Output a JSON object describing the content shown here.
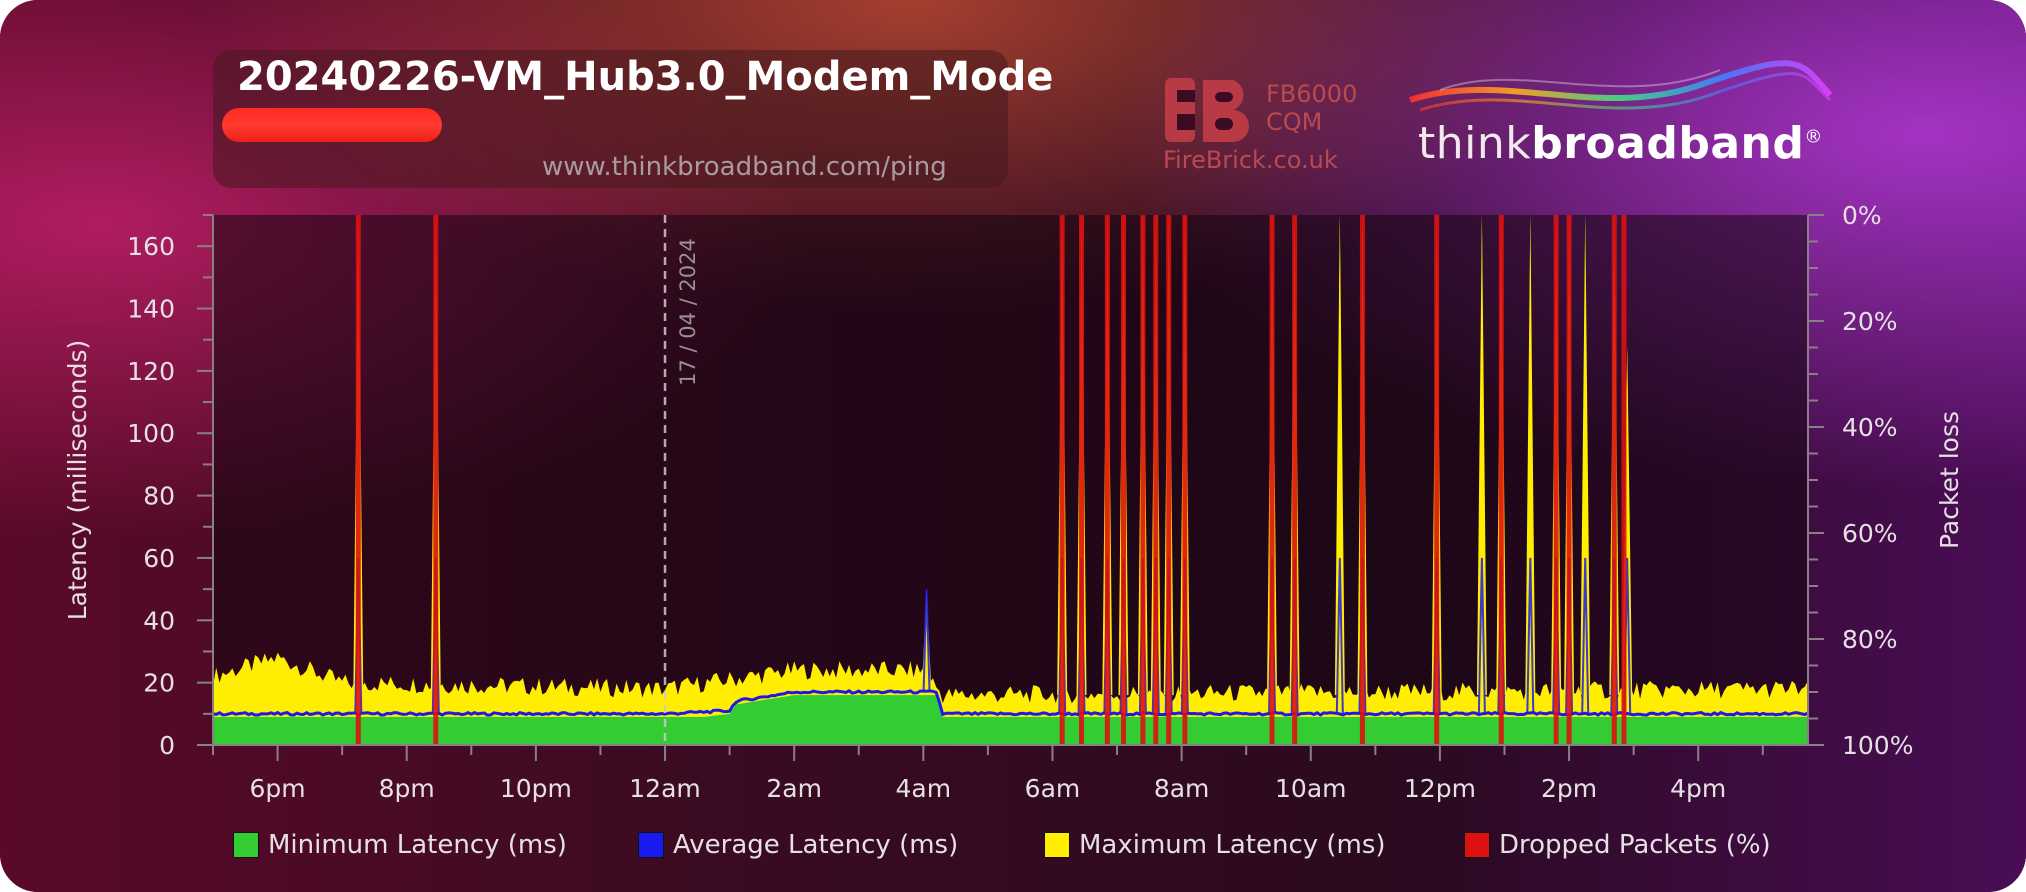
{
  "header": {
    "title": "20240226-VM_Hub3.0_Modem_Mode",
    "url": "www.thinkbroadband.com/ping"
  },
  "sponsor": {
    "line1": "FB6000",
    "line2": "CQM",
    "site": "FireBrick.co.uk"
  },
  "brand": {
    "light": "think",
    "bold": "broadband",
    "mark": "®"
  },
  "colors": {
    "minimum": "#33cc33",
    "average": "#1a1aee",
    "maximum": "#ffee00",
    "dropped": "#dd1111"
  },
  "chart_data": {
    "type": "area",
    "ylabel": "Latency (milliseconds)",
    "y2label": "Packet loss",
    "ylim": [
      0,
      170
    ],
    "yticks": [
      0,
      20,
      40,
      60,
      80,
      100,
      120,
      140,
      160
    ],
    "y2ticks": [
      "0%",
      "20%",
      "40%",
      "60%",
      "80%",
      "100%"
    ],
    "y2range": [
      100,
      0
    ],
    "x_tick_labels": [
      "6pm",
      "8pm",
      "10pm",
      "12am",
      "2am",
      "4am",
      "6am",
      "8am",
      "10am",
      "12pm",
      "2pm",
      "4pm"
    ],
    "x_tick_hours": [
      18,
      20,
      22,
      24,
      26,
      28,
      30,
      32,
      34,
      36,
      38,
      40
    ],
    "xlim_hours": [
      17.0,
      41.7
    ],
    "date_marker": {
      "hour": 24,
      "label": "17 / 04 / 2024"
    },
    "legend": [
      {
        "key": "minimum",
        "label": "Minimum Latency (ms)"
      },
      {
        "key": "average",
        "label": "Average Latency (ms)"
      },
      {
        "key": "maximum",
        "label": "Maximum Latency (ms)"
      },
      {
        "key": "dropped",
        "label": "Dropped Packets (%)"
      }
    ],
    "baseline": {
      "minimum": [
        [
          17.0,
          9
        ],
        [
          24.0,
          9
        ],
        [
          24.6,
          9
        ],
        [
          25.0,
          10
        ],
        [
          25.1,
          13
        ],
        [
          26.0,
          16
        ],
        [
          28.2,
          16
        ],
        [
          28.3,
          9
        ],
        [
          41.7,
          9
        ]
      ],
      "average": [
        [
          17.0,
          10
        ],
        [
          19.0,
          10
        ],
        [
          24.0,
          10
        ],
        [
          25.0,
          11
        ],
        [
          25.1,
          14
        ],
        [
          26.0,
          17
        ],
        [
          28.2,
          17
        ],
        [
          28.3,
          10
        ],
        [
          41.7,
          10
        ]
      ],
      "maximum": [
        [
          17.0,
          22
        ],
        [
          18.0,
          28
        ],
        [
          19.0,
          20
        ],
        [
          24.0,
          18
        ],
        [
          25.0,
          21
        ],
        [
          26.0,
          24
        ],
        [
          28.0,
          24
        ],
        [
          28.3,
          16
        ],
        [
          41.7,
          18
        ]
      ]
    },
    "latency_spikes": [
      {
        "hour": 19.25,
        "max": 170,
        "avg": 10
      },
      {
        "hour": 20.45,
        "max": 170,
        "avg": 10
      },
      {
        "hour": 28.05,
        "max": 50,
        "avg": 17
      },
      {
        "hour": 30.15,
        "max": 170,
        "avg": 10
      },
      {
        "hour": 30.45,
        "max": 170,
        "avg": 10
      },
      {
        "hour": 30.85,
        "max": 170,
        "avg": 10
      },
      {
        "hour": 31.1,
        "max": 170,
        "avg": 10
      },
      {
        "hour": 31.4,
        "max": 170,
        "avg": 10
      },
      {
        "hour": 31.6,
        "max": 170,
        "avg": 10
      },
      {
        "hour": 31.8,
        "max": 170,
        "avg": 10
      },
      {
        "hour": 32.05,
        "max": 170,
        "avg": 10
      },
      {
        "hour": 33.4,
        "max": 170,
        "avg": 10
      },
      {
        "hour": 33.75,
        "max": 170,
        "avg": 10
      },
      {
        "hour": 34.45,
        "max": 170,
        "avg": 10
      },
      {
        "hour": 34.8,
        "max": 170,
        "avg": 10
      },
      {
        "hour": 35.95,
        "max": 170,
        "avg": 10
      },
      {
        "hour": 36.65,
        "max": 170,
        "avg": 10
      },
      {
        "hour": 36.95,
        "max": 170,
        "avg": 10
      },
      {
        "hour": 37.4,
        "max": 170,
        "avg": 10
      },
      {
        "hour": 37.8,
        "max": 170,
        "avg": 10
      },
      {
        "hour": 38.0,
        "max": 170,
        "avg": 10
      },
      {
        "hour": 38.25,
        "max": 170,
        "avg": 10
      },
      {
        "hour": 38.7,
        "max": 170,
        "avg": 10
      },
      {
        "hour": 38.9,
        "max": 128,
        "avg": 10
      }
    ],
    "dropped_packets": [
      {
        "hour": 19.25,
        "pct": 100
      },
      {
        "hour": 20.45,
        "pct": 100
      },
      {
        "hour": 30.15,
        "pct": 100
      },
      {
        "hour": 30.45,
        "pct": 100
      },
      {
        "hour": 30.85,
        "pct": 100
      },
      {
        "hour": 31.1,
        "pct": 100
      },
      {
        "hour": 31.4,
        "pct": 100
      },
      {
        "hour": 31.6,
        "pct": 100
      },
      {
        "hour": 31.8,
        "pct": 100
      },
      {
        "hour": 32.05,
        "pct": 100
      },
      {
        "hour": 33.4,
        "pct": 100
      },
      {
        "hour": 33.75,
        "pct": 100
      },
      {
        "hour": 34.8,
        "pct": 100
      },
      {
        "hour": 35.95,
        "pct": 100
      },
      {
        "hour": 36.95,
        "pct": 100
      },
      {
        "hour": 37.8,
        "pct": 100
      },
      {
        "hour": 38.0,
        "pct": 100
      },
      {
        "hour": 38.7,
        "pct": 100
      },
      {
        "hour": 38.85,
        "pct": 100
      }
    ]
  }
}
